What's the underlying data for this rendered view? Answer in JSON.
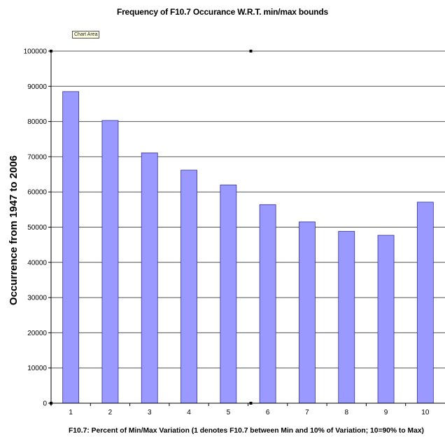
{
  "chart_data": {
    "type": "bar",
    "title": "Frequency of F10.7 Occurance W.R.T. min/max bounds",
    "xlabel": "F10.7: Percent of Min/Max Variation (1 denotes F10.7 between Min and 10% of Variation; 10=90% to Max)",
    "ylabel": "Occurrence from 1947 to 2006",
    "categories": [
      "1",
      "2",
      "3",
      "4",
      "5",
      "6",
      "7",
      "8",
      "9",
      "10"
    ],
    "series": [
      {
        "values": [
          88500,
          80300,
          71100,
          66200,
          62000,
          56400,
          51500,
          48800,
          47700,
          57100
        ]
      }
    ],
    "ylim": [
      0,
      100000
    ],
    "yticks": [
      "0",
      "10000",
      "20000",
      "30000",
      "40000",
      "50000",
      "60000",
      "70000",
      "80000",
      "90000",
      "100000"
    ],
    "grid": true,
    "legend": "none",
    "colors": {
      "bar_fill": "#9999ff",
      "bar_stroke": "#333399",
      "grid": "#555555"
    }
  },
  "ui": {
    "tooltip": "Chart Area"
  }
}
